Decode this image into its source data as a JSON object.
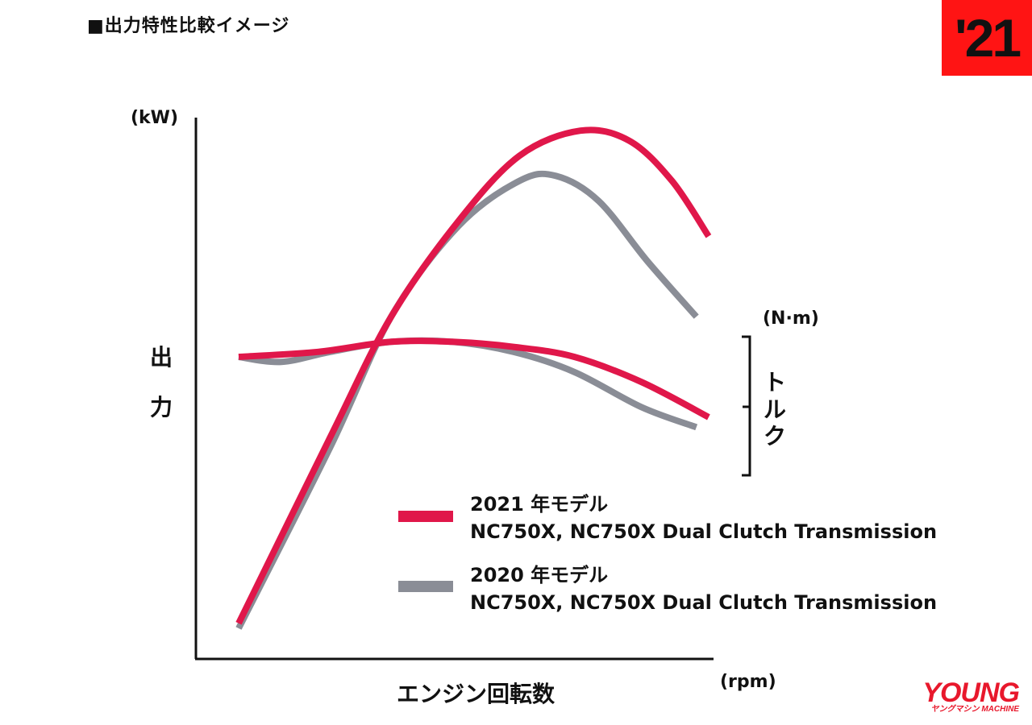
{
  "header": {
    "title": "■出力特性比較イメージ",
    "year_badge": "'21"
  },
  "colors": {
    "model_2021": "#e0174a",
    "model_2020": "#8a8d96",
    "badge": "#ff1414",
    "axis": "#111111"
  },
  "chart_data": {
    "type": "line",
    "title": "■出力特性比較イメージ",
    "xlabel": "エンジン回転数",
    "xunit": "(rpm)",
    "ylabel_left": "出力",
    "ylabel_left_chars": [
      "出",
      "力"
    ],
    "yunit_left": "(kW)",
    "ylabel_right": "トルク",
    "ylabel_right_chars": [
      "ト",
      "ル",
      "ク"
    ],
    "yunit_right": "(N·m)",
    "xlim": [
      0,
      100
    ],
    "ylim": [
      0,
      100
    ],
    "note": "Illustrative comparison image; no numeric scale shown. Values in relative units read from the figure.",
    "series": [
      {
        "name": "2021 年モデル",
        "measure": "output",
        "color": "#e0174a",
        "x": [
          7,
          22,
          32,
          43,
          53,
          63,
          71,
          78,
          84
        ],
        "y": [
          1,
          38,
          62,
          81,
          94,
          99,
          97,
          89,
          78
        ]
      },
      {
        "name": "2020 年モデル",
        "measure": "output",
        "color": "#8a8d96",
        "x": [
          7,
          22,
          32,
          43,
          53,
          59,
          66,
          74,
          82
        ],
        "y": [
          0,
          36,
          62,
          80,
          89,
          90,
          85,
          73,
          62
        ]
      },
      {
        "name": "2021 年モデル",
        "measure": "torque",
        "color": "#e0174a",
        "x": [
          7,
          20,
          32,
          42,
          52,
          62,
          73,
          84
        ],
        "y": [
          54,
          55,
          57,
          57,
          56,
          54,
          49,
          42
        ]
      },
      {
        "name": "2020 年モデル",
        "measure": "torque",
        "color": "#8a8d96",
        "x": [
          7,
          14,
          22,
          32,
          42,
          52,
          62,
          73,
          82
        ],
        "y": [
          54,
          53,
          55,
          57,
          57,
          55,
          51,
          44,
          40
        ]
      }
    ],
    "legend": [
      {
        "label": "2021 年モデル",
        "desc": "NC750X, NC750X Dual Clutch Transmission",
        "color": "#e0174a"
      },
      {
        "label": "2020 年モデル",
        "desc": "NC750X, NC750X Dual Clutch Transmission",
        "color": "#8a8d96"
      }
    ]
  },
  "logo": {
    "main": "YOUNG",
    "sub": "ヤングマシン MACHINE"
  }
}
